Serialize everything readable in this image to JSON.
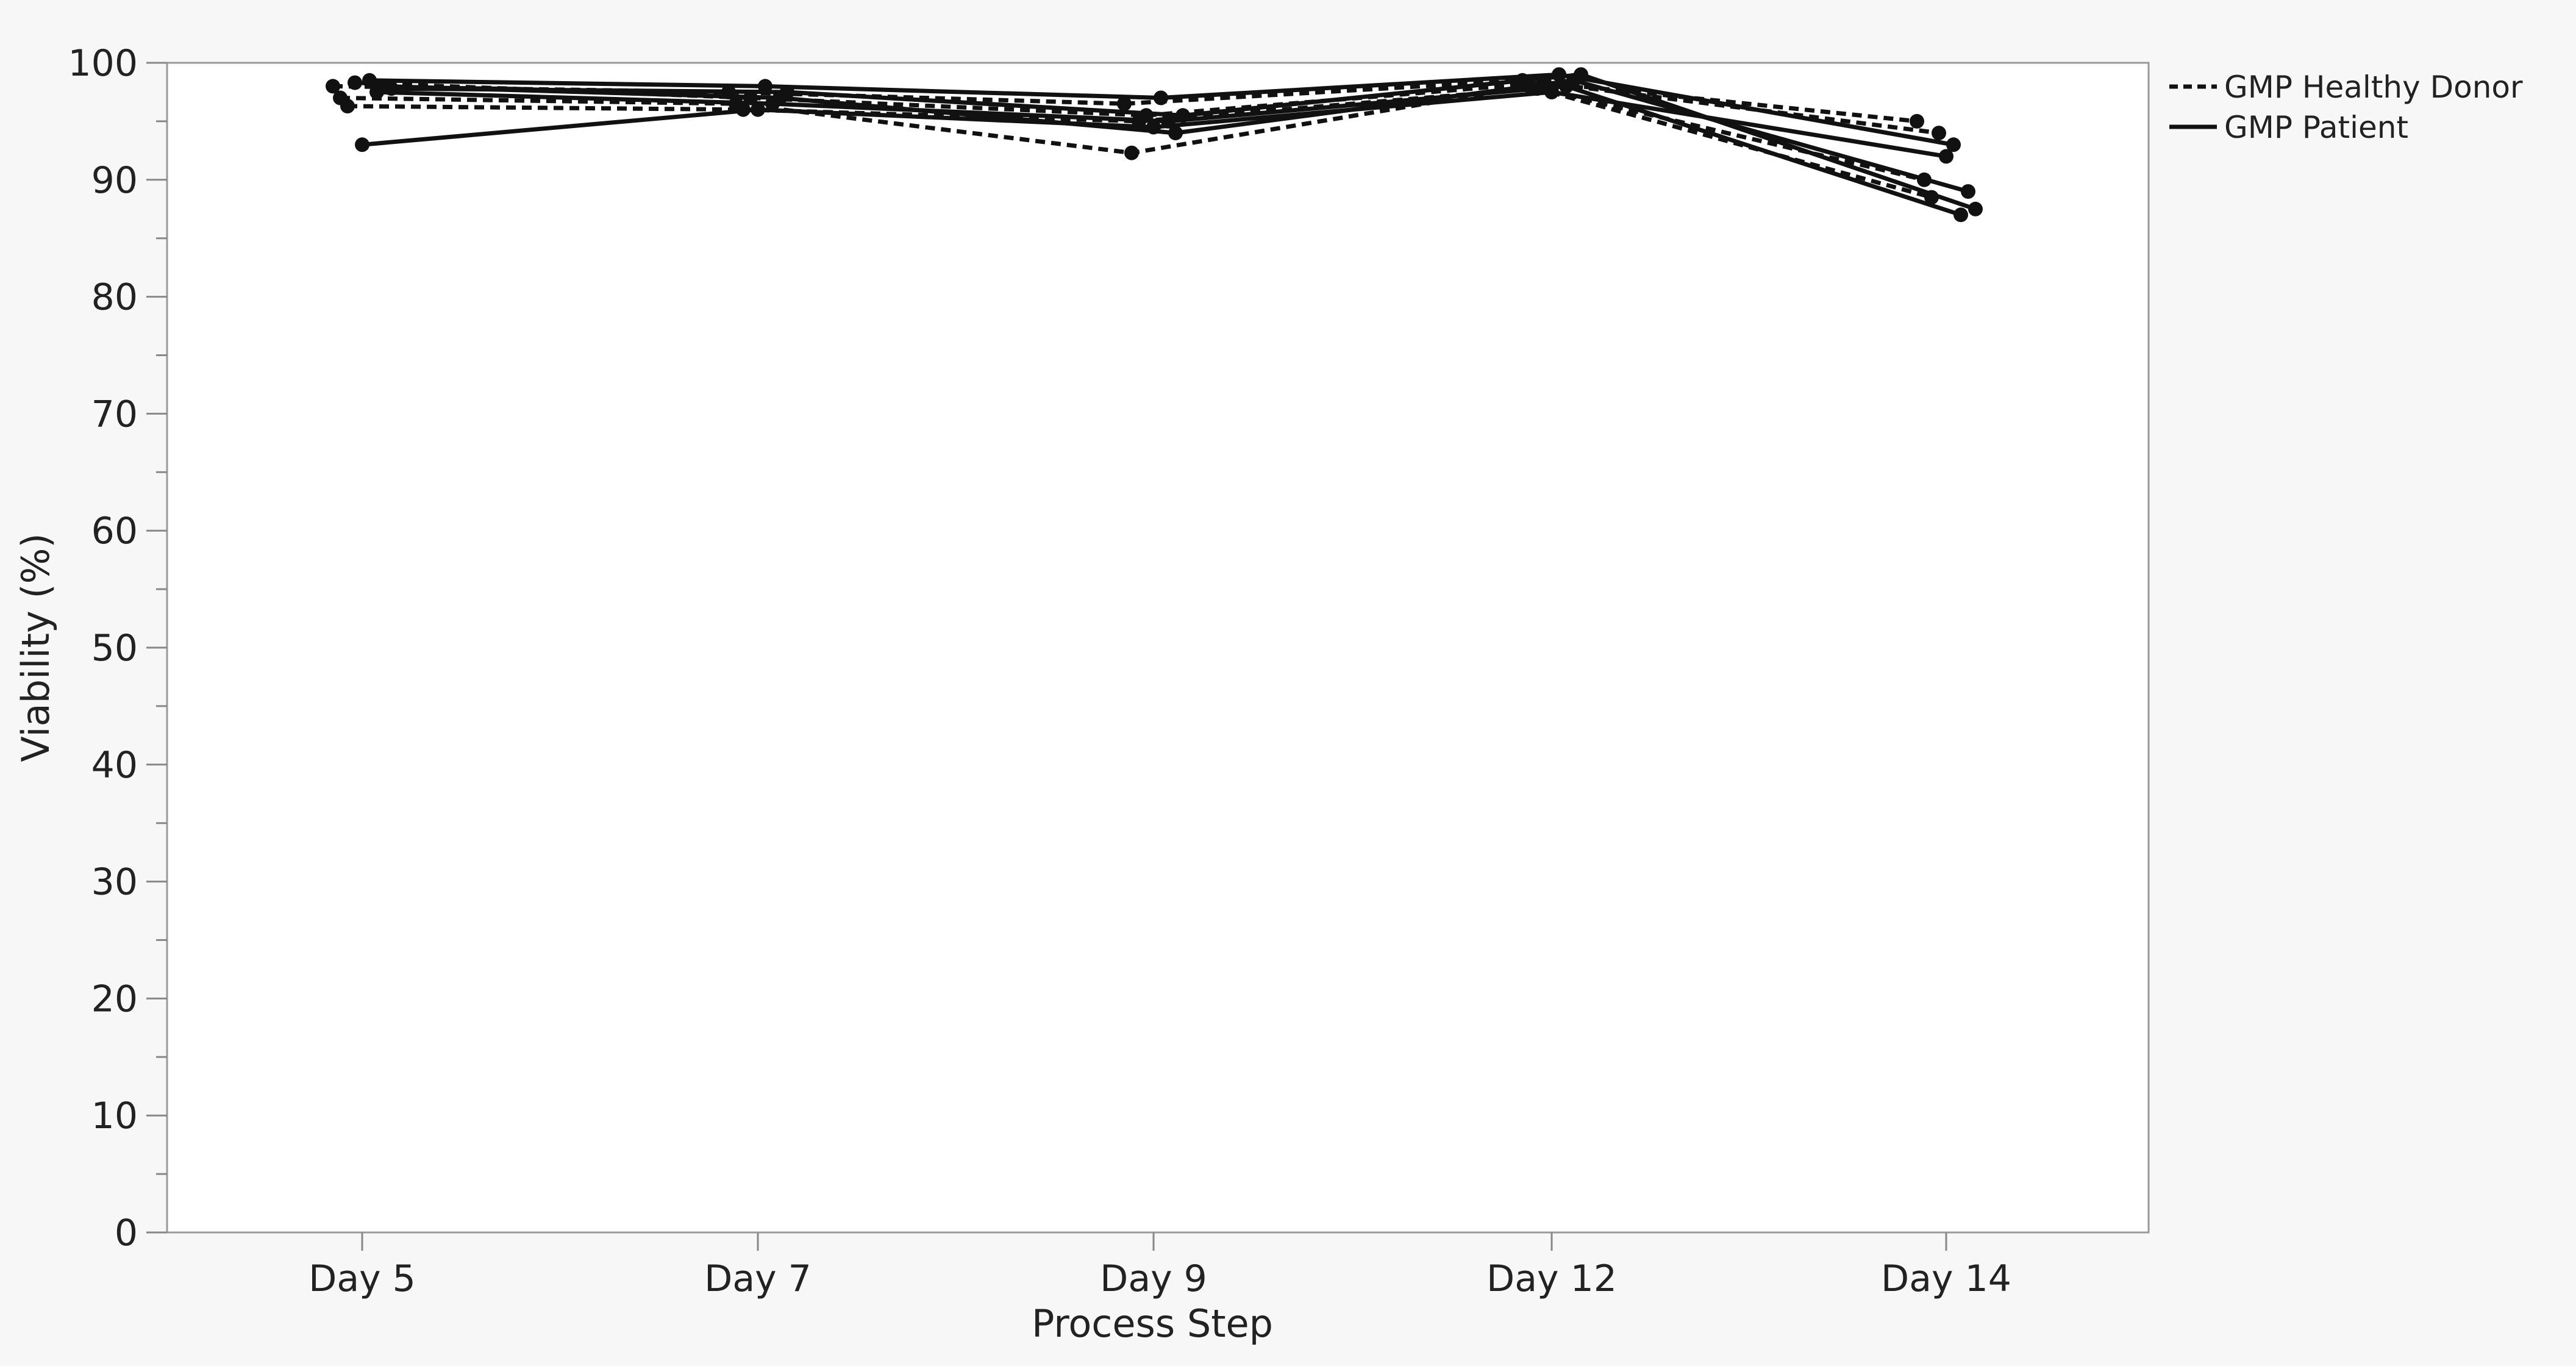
{
  "chart_data": {
    "type": "line",
    "title": "",
    "xlabel": "Process Step",
    "ylabel": "Viability (%)",
    "categories": [
      "Day 5",
      "Day 7",
      "Day 9",
      "Day 12",
      "Day 14"
    ],
    "ylim": [
      0,
      100
    ],
    "yticks": [
      0,
      10,
      20,
      30,
      40,
      50,
      60,
      70,
      80,
      90,
      100
    ],
    "grid": false,
    "legend_position": "top-right",
    "legend": [
      {
        "label": "GMP Healthy Donor",
        "style": "dashed"
      },
      {
        "label": "GMP Patient",
        "style": "solid"
      }
    ],
    "series": [
      {
        "group": "GMP Healthy Donor",
        "style": "dashed",
        "values": [
          98.0,
          97.5,
          96.5,
          98.5,
          95.0
        ]
      },
      {
        "group": "GMP Healthy Donor",
        "style": "dashed",
        "values": [
          97.0,
          96.5,
          92.3,
          98.0,
          90.0
        ]
      },
      {
        "group": "GMP Healthy Donor",
        "style": "dashed",
        "values": [
          96.3,
          96.0,
          95.0,
          97.8,
          88.5
        ]
      },
      {
        "group": "GMP Healthy Donor",
        "style": "dashed",
        "values": [
          98.3,
          97.0,
          95.5,
          98.3,
          94.0
        ]
      },
      {
        "group": "GMP Patient",
        "style": "solid",
        "values": [
          93.0,
          96.0,
          94.5,
          97.5,
          92.0
        ]
      },
      {
        "group": "GMP Patient",
        "style": "solid",
        "values": [
          98.5,
          98.0,
          97.0,
          99.0,
          93.0
        ]
      },
      {
        "group": "GMP Patient",
        "style": "solid",
        "values": [
          97.5,
          96.5,
          95.0,
          98.0,
          87.0
        ]
      },
      {
        "group": "GMP Patient",
        "style": "solid",
        "values": [
          98.0,
          97.0,
          94.0,
          98.5,
          89.0
        ]
      },
      {
        "group": "GMP Patient",
        "style": "solid",
        "values": [
          97.8,
          97.5,
          95.5,
          99.0,
          87.5
        ]
      }
    ],
    "colors": {
      "line": "#111111",
      "axis": "#888888",
      "background": "#f7f7f7",
      "plot_background": "#ffffff"
    }
  }
}
